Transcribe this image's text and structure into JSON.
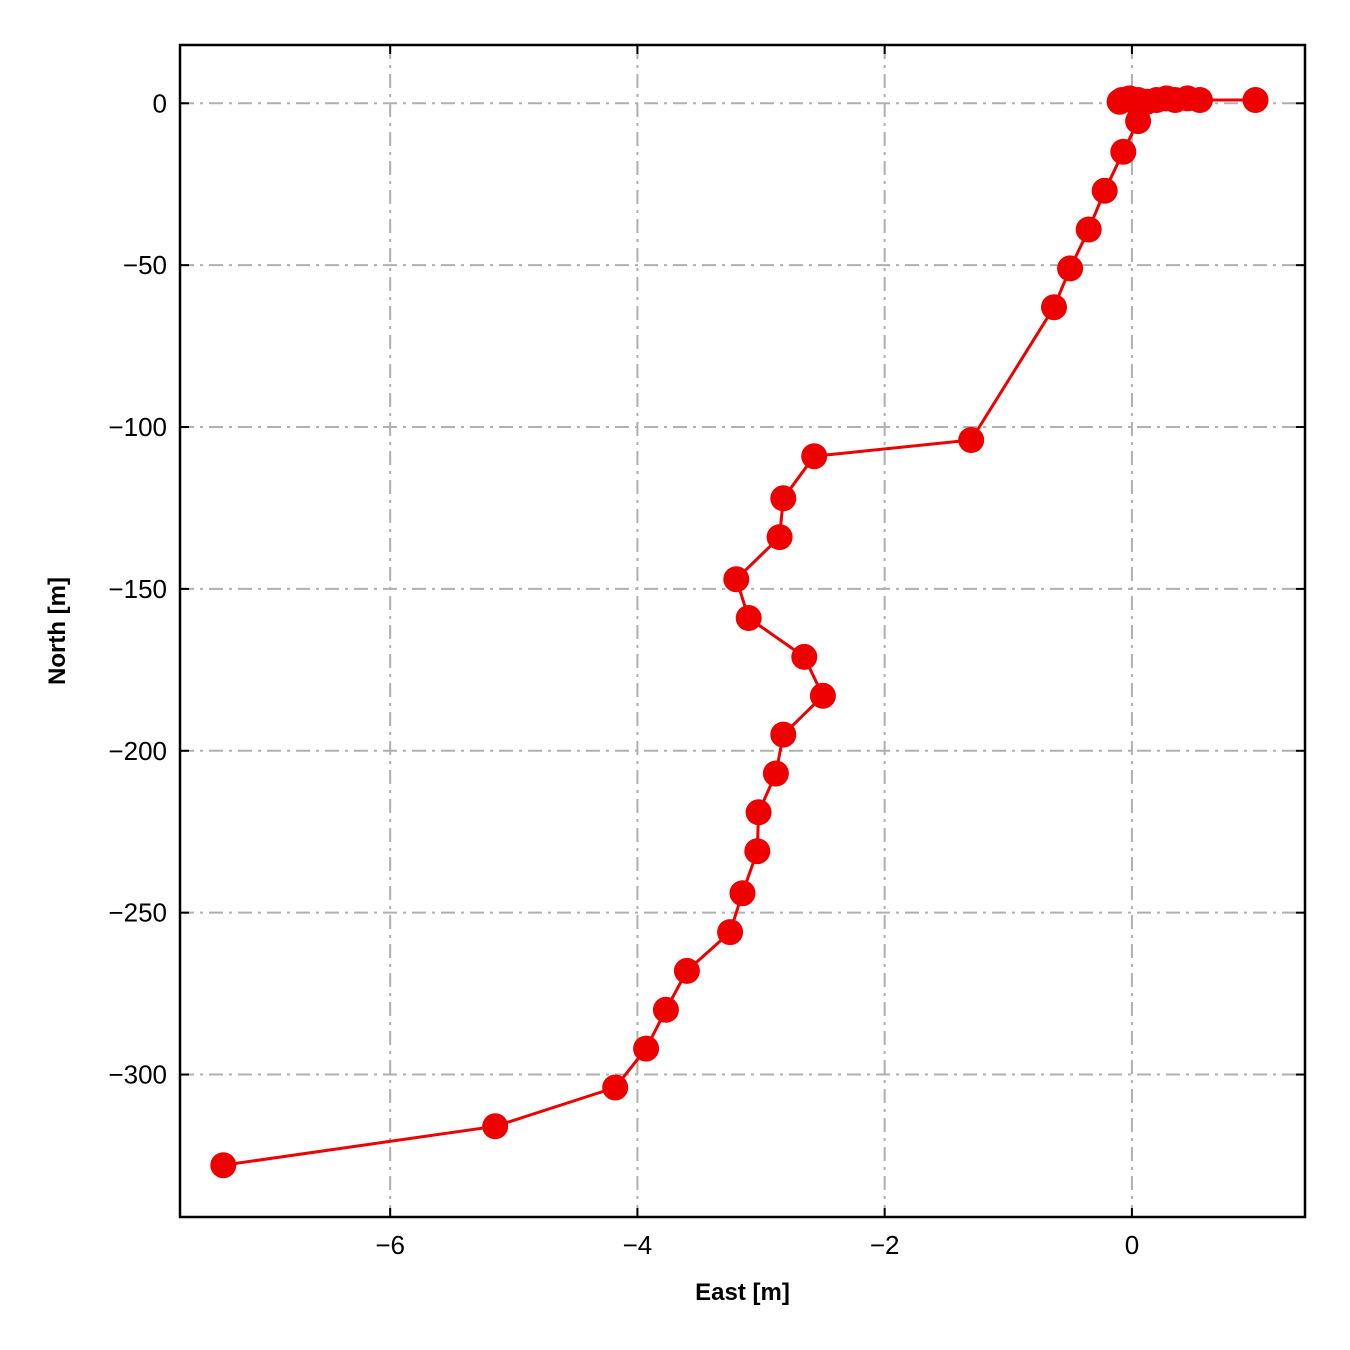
{
  "chart_data": {
    "type": "line",
    "title": "",
    "xlabel": "East [m]",
    "ylabel": "North [m]",
    "xlim": [
      -7.7,
      1.4
    ],
    "ylim": [
      -344,
      18
    ],
    "xticks": [
      -6,
      -4,
      -2,
      0
    ],
    "xtick_labels": [
      "−6",
      "−4",
      "−2",
      "0"
    ],
    "yticks": [
      0,
      -50,
      -100,
      -150,
      -200,
      -250,
      -300
    ],
    "ytick_labels": [
      "0",
      "−50",
      "−100",
      "−150",
      "−200",
      "−250",
      "−300"
    ],
    "grid": true,
    "grid_style": "dash-dot",
    "line_color": "#ee0000",
    "marker": "circle",
    "series": [
      {
        "x": [
          1.0,
          0.55,
          0.45,
          0.35,
          0.28,
          0.2,
          0.12,
          0.05,
          -0.02,
          -0.08,
          -0.1,
          0.05,
          -0.07,
          -0.22,
          -0.35,
          -0.5,
          -0.63,
          -1.3,
          -2.57,
          -2.82,
          -2.85,
          -3.2,
          -3.1,
          -2.65,
          -2.5,
          -2.82,
          -2.88,
          -3.02,
          -3.03,
          -3.15,
          -3.25,
          -3.6,
          -3.77,
          -3.93,
          -4.18,
          -5.15,
          -7.35
        ],
        "y": [
          1,
          1,
          1.5,
          1,
          1.5,
          1,
          0.5,
          1,
          1.5,
          1,
          0.5,
          -5.5,
          -15,
          -27,
          -39,
          -51,
          -63,
          -104,
          -109,
          -122,
          -134,
          -147,
          -159,
          -171,
          -183,
          -195,
          -207,
          -219,
          -231,
          -244,
          -256,
          -268,
          -280,
          -292,
          -304,
          -316,
          -328
        ]
      }
    ]
  }
}
